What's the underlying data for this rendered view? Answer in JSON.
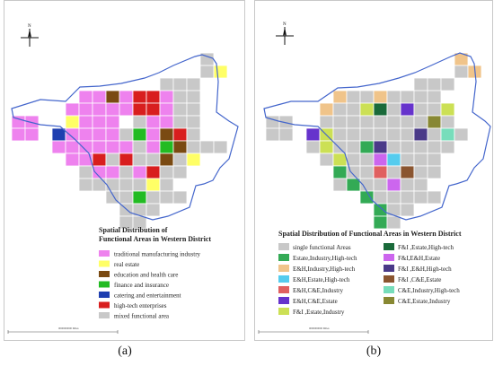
{
  "captions": {
    "a": "(a)",
    "b": "(b)"
  },
  "north_label": "N",
  "scale_label": "0000000000 Miles",
  "panel_a": {
    "legend_title_1": "Spatial Distribution of",
    "legend_title_2": "Functional Areas in Western District",
    "legend": [
      {
        "label": "traditional manufacturing industry",
        "color": "#ee82ee"
      },
      {
        "label": "real estate",
        "color": "#ffff66"
      },
      {
        "label": "education and health care",
        "color": "#7a4a12"
      },
      {
        "label": "finance and insurance",
        "color": "#22bb22"
      },
      {
        "label": "catering and entertainment",
        "color": "#1f3fb0"
      },
      {
        "label": "high-tech enterprises",
        "color": "#d81e1e"
      },
      {
        "label": "mixed functional area",
        "color": "#c8c8c8"
      }
    ]
  },
  "panel_b": {
    "legend_title": "Spatial Distribution of Functional Areas in Western District",
    "legend": [
      {
        "label": "single functional Areas",
        "color": "#c8c8c8"
      },
      {
        "label": "Estate,Industry,High-tech",
        "color": "#33aa55"
      },
      {
        "label": "E&H,Industry,High-tech",
        "color": "#f0c48a"
      },
      {
        "label": "E&H,Estate,High-tech",
        "color": "#55ccee"
      },
      {
        "label": "E&H,C&E,Industry",
        "color": "#e06060"
      },
      {
        "label": "E&H,C&E,Estate",
        "color": "#6633cc"
      },
      {
        "label": "F&I ,Estate,Industry",
        "color": "#cce055"
      },
      {
        "label": "F&I ,Estate,High-tech",
        "color": "#1a6a3a"
      },
      {
        "label": "F&I,E&H,Estate",
        "color": "#cc66ee"
      },
      {
        "label": "F&I ,E&H,High-tech",
        "color": "#4a3a88"
      },
      {
        "label": "F&I ,C&E,Estate",
        "color": "#8a5530"
      },
      {
        "label": "C&E,Industry,High-tech",
        "color": "#77ddbb"
      },
      {
        "label": "C&E,Estate,Industry",
        "color": "#888833"
      }
    ]
  }
}
